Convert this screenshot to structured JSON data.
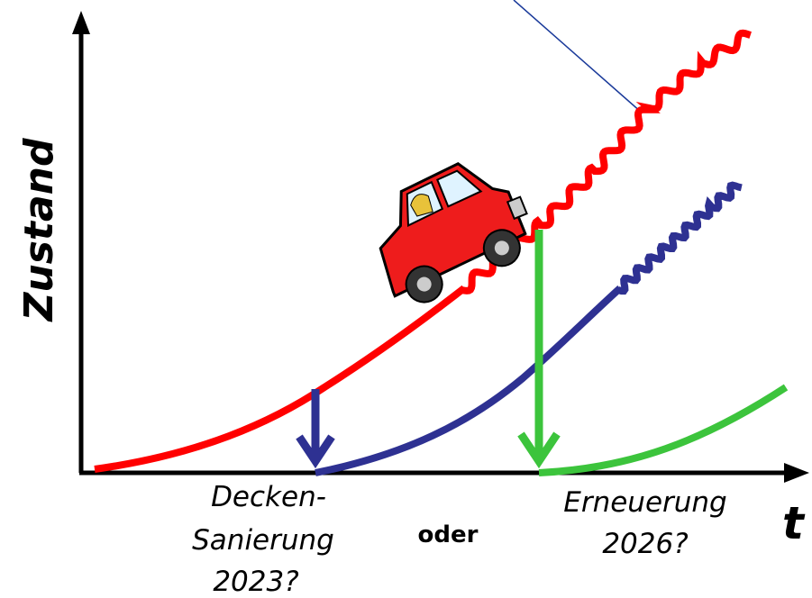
{
  "y_axis_label": "Zustand",
  "x_axis_label": "t",
  "option_a": [
    "Decken-",
    "Sanierung",
    "2023?"
  ],
  "connector": "oder",
  "option_b": [
    "Erneuerung",
    "2026?"
  ]
}
